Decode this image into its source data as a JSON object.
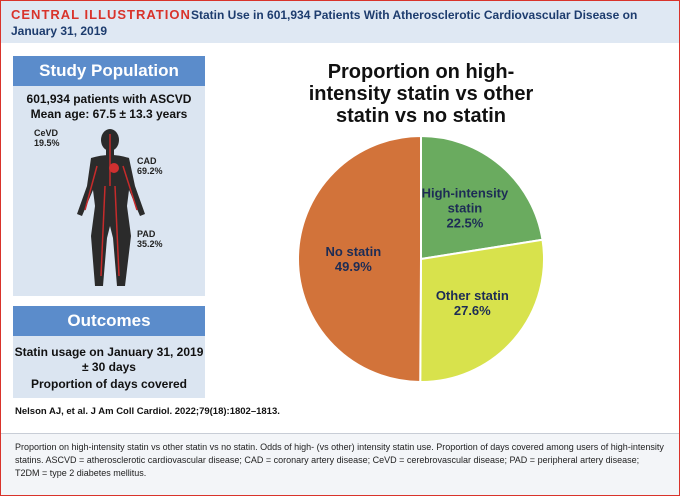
{
  "header": {
    "label": "CENTRAL ILLUSTRATION",
    "title": "Statin Use in 601,934 Patients With Atherosclerotic Cardiovascular Disease on January 31, 2019"
  },
  "study_population": {
    "heading": "Study Population",
    "lines": [
      "601,934  patients with ASCVD",
      "Mean age: 67.5 ± 13.3 years"
    ],
    "conditions": [
      {
        "name": "CeVD",
        "value": "19.5%"
      },
      {
        "name": "CAD",
        "value": "69.2%"
      },
      {
        "name": "PAD",
        "value": "35.2%"
      }
    ]
  },
  "outcomes": {
    "heading": "Outcomes",
    "lines": [
      "Statin usage on January 31, 2019",
      "± 30 days",
      "Proportion of days covered"
    ]
  },
  "citation": "Nelson AJ, et al. J Am Coll Cardiol. 2022;79(18):1802–1813.",
  "caption": "Proportion on high-intensity statin vs other statin vs no statin. Odds of high- (vs other) intensity statin use. Proportion of days covered among users of high-intensity statins. ASCVD = atherosclerotic cardiovascular disease; CAD = coronary artery disease; CeVD = cerebrovascular disease; PAD = peripheral artery disease; T2DM = type 2 diabetes mellitus.",
  "chart_data": {
    "type": "pie",
    "title": "Proportion on high-intensity statin vs other statin vs no statin",
    "categories": [
      "High-intensity statin",
      "Other statin",
      "No statin"
    ],
    "values": [
      22.5,
      27.6,
      49.9
    ],
    "value_labels": [
      "22.5%",
      "27.6%",
      "49.9%"
    ],
    "colors": [
      "#6aab5f",
      "#d8e24c",
      "#d2733a"
    ]
  }
}
